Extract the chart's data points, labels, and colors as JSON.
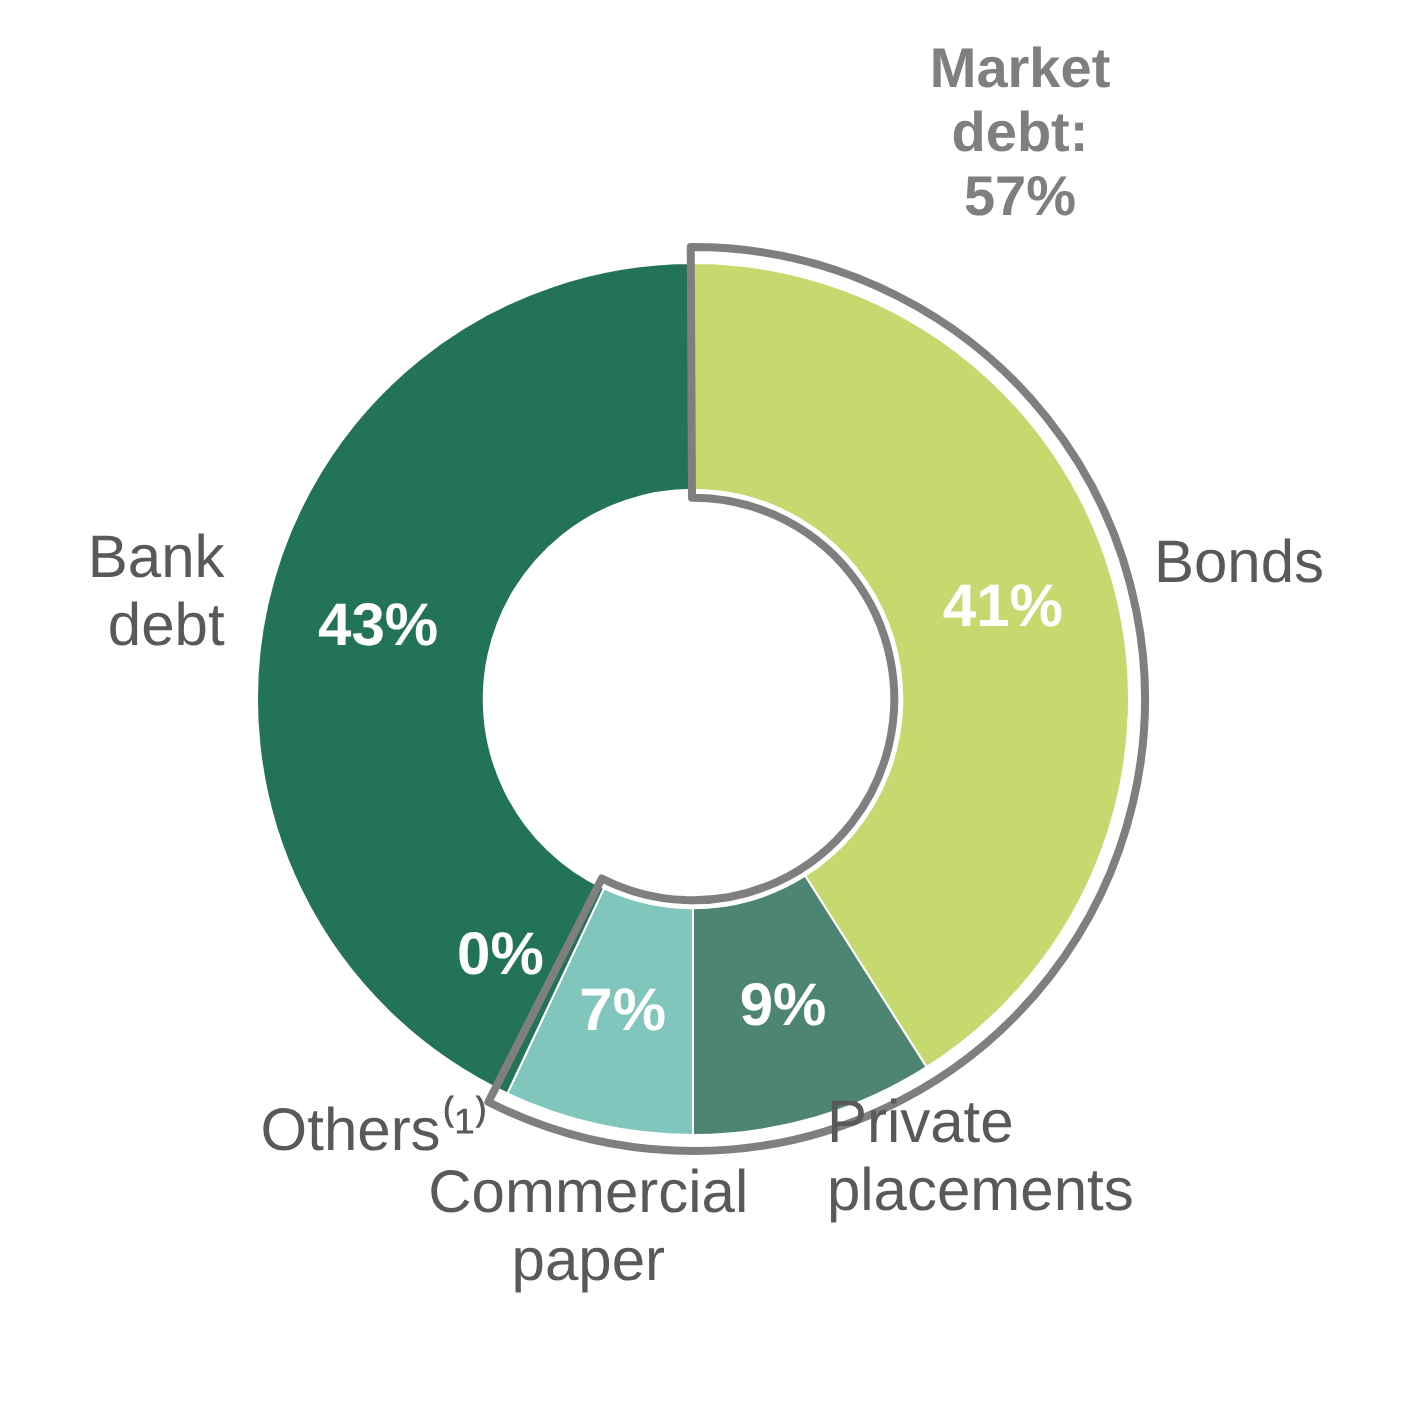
{
  "chart_data": {
    "type": "donut",
    "categories": [
      "Bonds",
      "Private placements",
      "Commercial paper",
      "Others⁽¹⁾",
      "Bank debt"
    ],
    "values": [
      41,
      9,
      7,
      0,
      43
    ],
    "colors": [
      "#c6d96f",
      "#4d8472",
      "#80c6bc",
      "#0b4a25",
      "#237357"
    ],
    "value_labels": [
      "41%",
      "9%",
      "7%",
      "0%",
      "43%"
    ],
    "legend": false,
    "annotations": [
      "Market debt: 57%"
    ]
  }
}
